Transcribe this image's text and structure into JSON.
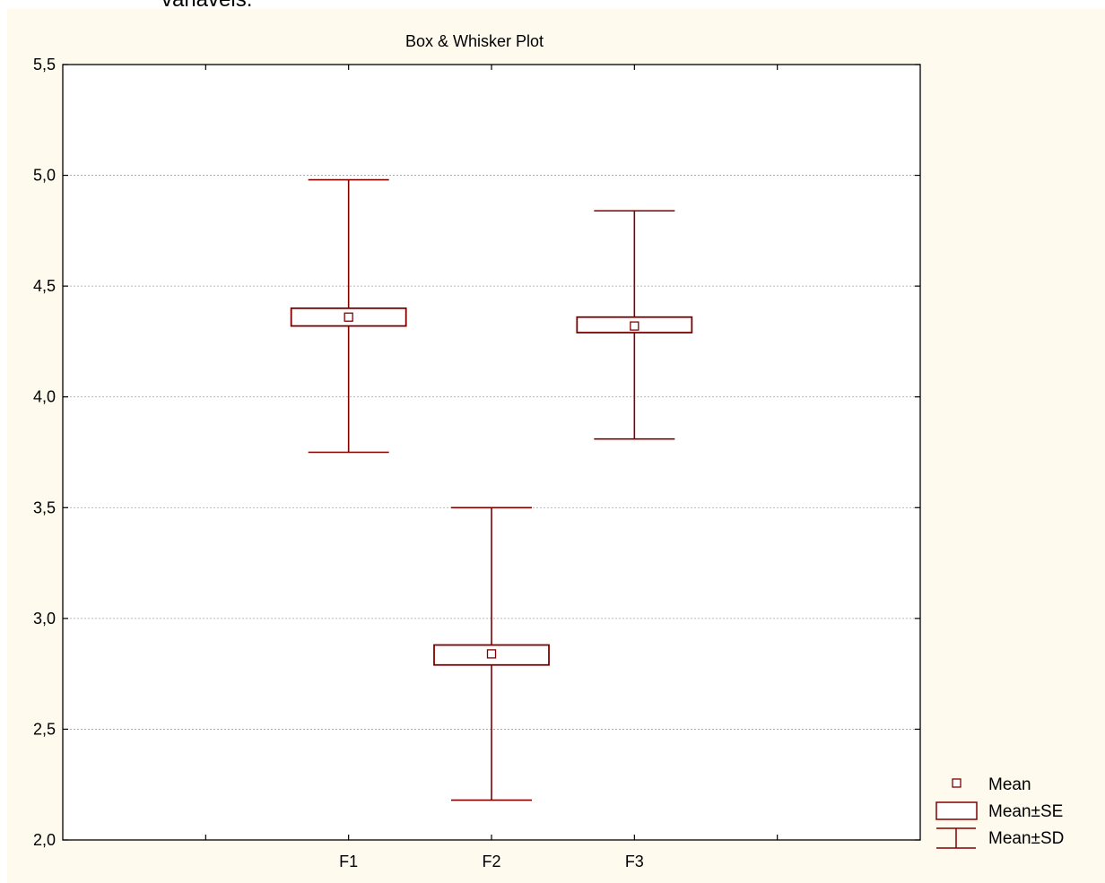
{
  "header_fragment": "variáveis.",
  "colors": {
    "plot_bg": "#ffffff",
    "page_bg": "#fefaee",
    "series": "#800000",
    "grid": "#a0a0a0",
    "axis": "#000000"
  },
  "chart_data": {
    "type": "box",
    "title": "Box & Whisker Plot",
    "xlabel": "",
    "ylabel": "",
    "categories": [
      "F1",
      "F2",
      "F3"
    ],
    "mean": [
      4.36,
      2.84,
      4.32
    ],
    "se_low": [
      4.32,
      2.79,
      4.29
    ],
    "se_high": [
      4.4,
      2.88,
      4.36
    ],
    "sd_low": [
      3.75,
      2.18,
      3.81
    ],
    "sd_high": [
      4.98,
      3.5,
      4.84
    ],
    "ylim": [
      2.0,
      5.5
    ],
    "y_ticks": [
      2.0,
      2.5,
      3.0,
      3.5,
      4.0,
      4.5,
      5.0,
      5.5
    ],
    "y_tick_labels": [
      "2,0",
      "2,5",
      "3,0",
      "3,5",
      "4,0",
      "4,5",
      "5,0",
      "5,5"
    ],
    "grid": true,
    "legend_position": "bottom-right",
    "legend": [
      {
        "marker": "square",
        "label": "Mean"
      },
      {
        "marker": "box",
        "label": "Mean±SE"
      },
      {
        "marker": "whisker",
        "label": "Mean±SD"
      }
    ]
  }
}
